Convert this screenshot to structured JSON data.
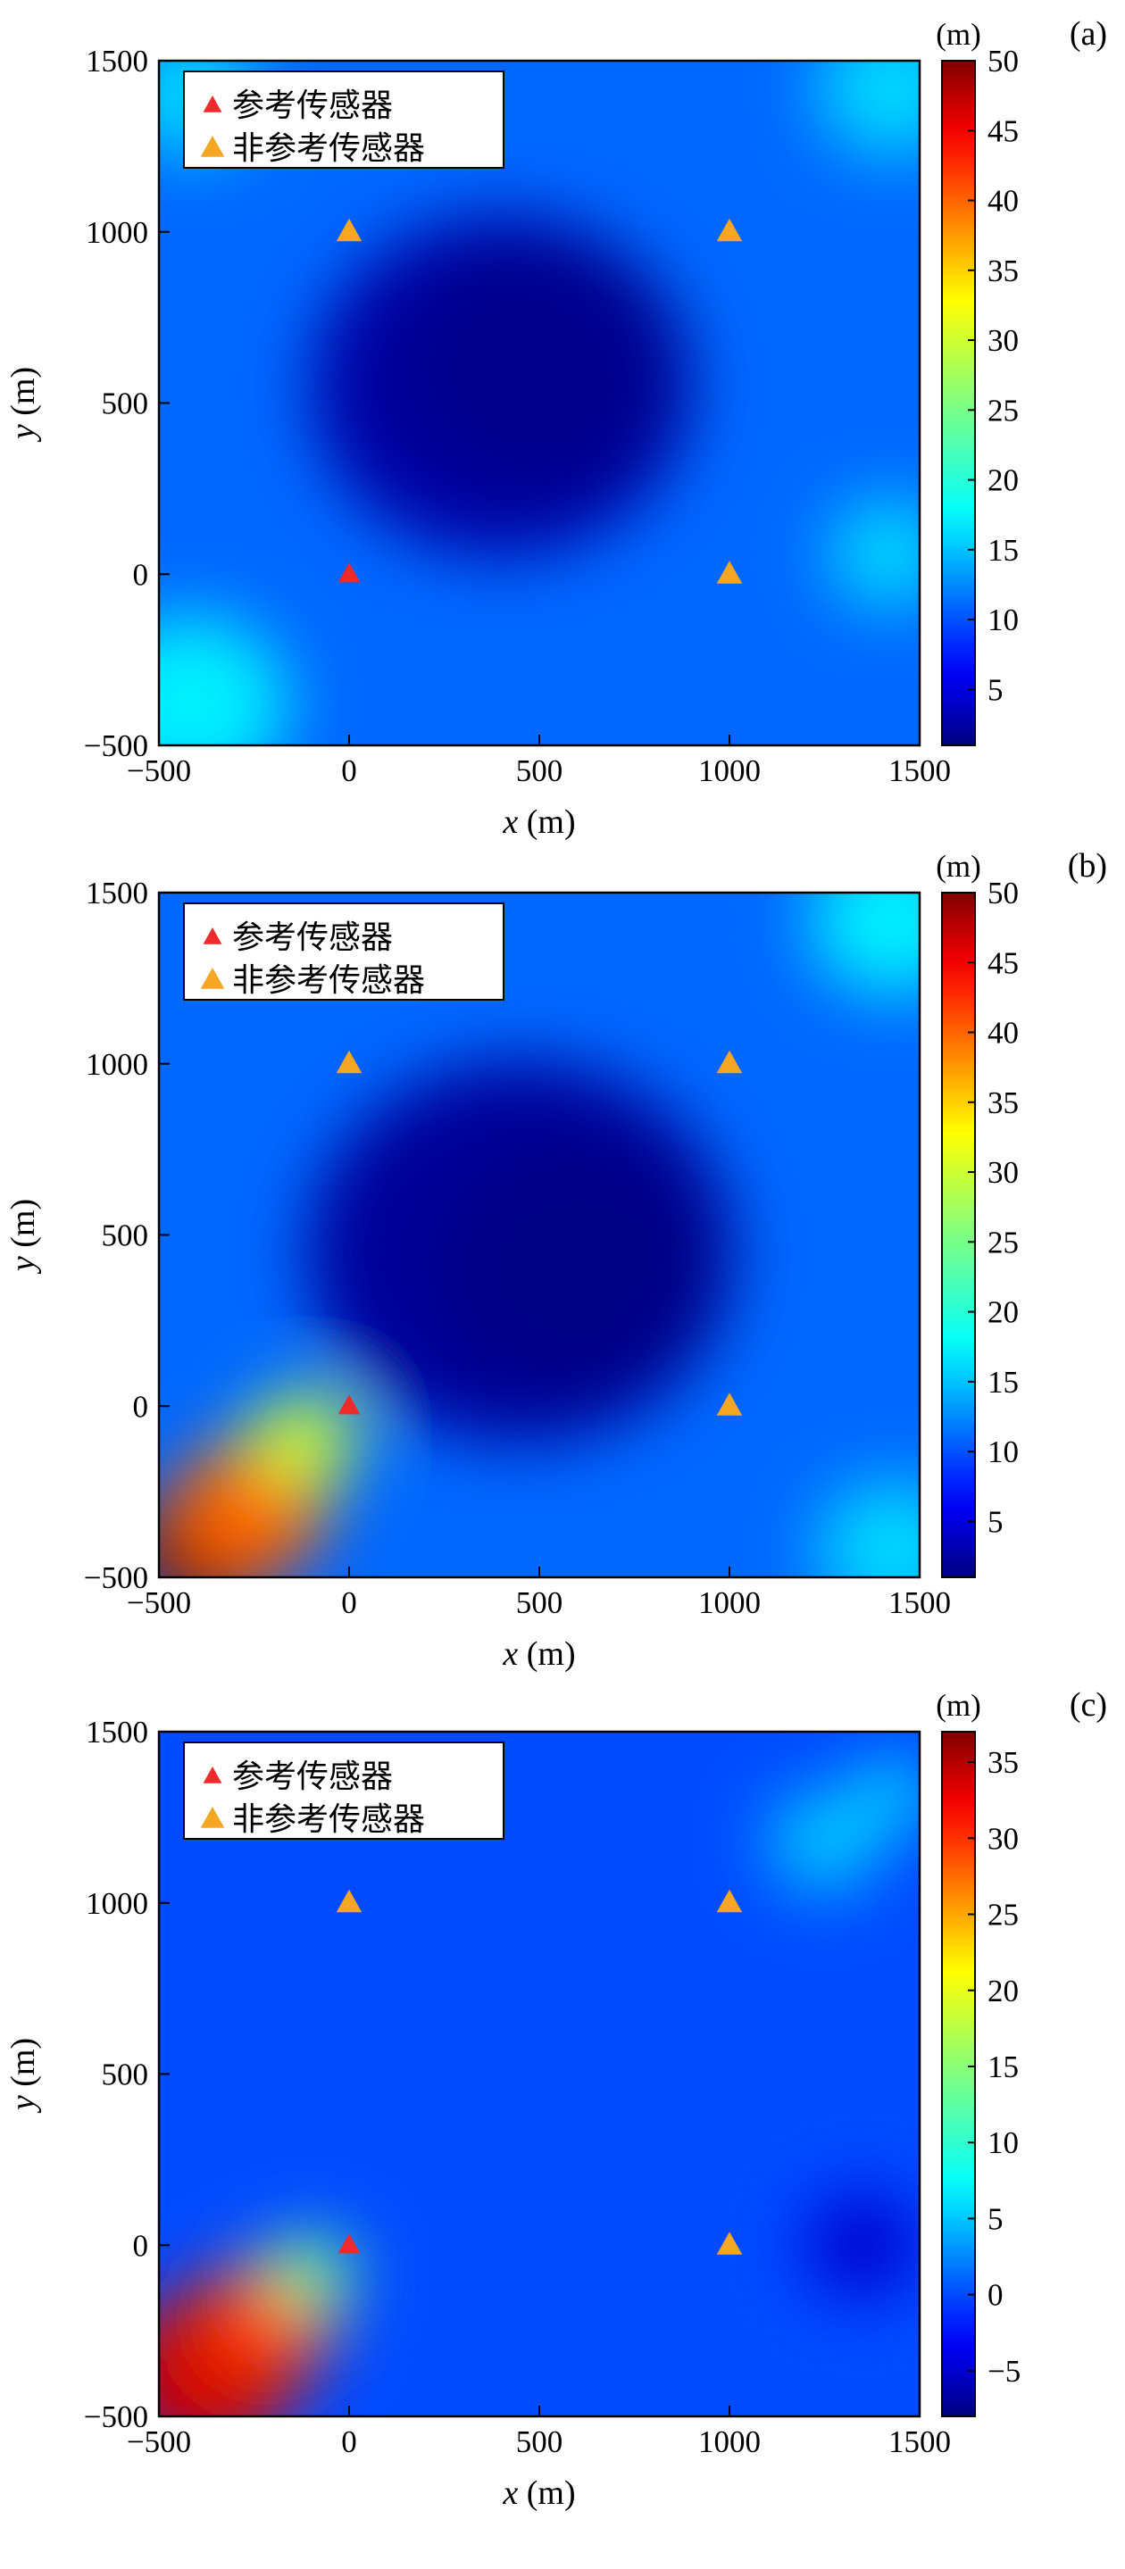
{
  "chart_data": [
    {
      "type": "heatmap",
      "panel_label": "(a)",
      "xlabel_var": "x",
      "xlabel_unit": " (m)",
      "ylabel_var": "y",
      "ylabel_unit": " (m)",
      "xlim": [
        -500,
        1500
      ],
      "ylim": [
        -500,
        1500
      ],
      "x_ticks": [
        -500,
        0,
        500,
        1000,
        1500
      ],
      "y_ticks": [
        -500,
        0,
        500,
        1000,
        1500
      ],
      "colorbar": {
        "unit": "(m)",
        "range": [
          1,
          50
        ],
        "ticks": [
          5,
          10,
          15,
          20,
          25,
          30,
          35,
          40,
          45,
          50
        ]
      },
      "legend": {
        "placement": "top-left",
        "entries": [
          {
            "label": "参考传感器",
            "color": "#ee2a2a"
          },
          {
            "label": "非参考传感器",
            "color": "#f5a623"
          }
        ]
      },
      "sensors": {
        "reference": [
          {
            "x": 0,
            "y": 0
          }
        ],
        "non_reference": [
          {
            "x": 0,
            "y": 1000
          },
          {
            "x": 1000,
            "y": 1000
          },
          {
            "x": 1000,
            "y": 0
          }
        ]
      },
      "field_sketch": {
        "background": 11,
        "blobs": [
          {
            "x": 400,
            "y": 550,
            "r": 500,
            "value": 2.5
          },
          {
            "x": 500,
            "y": 600,
            "r": 380,
            "value": 1.5
          },
          {
            "x": -420,
            "y": -380,
            "r": 260,
            "value": 17
          },
          {
            "x": 1420,
            "y": 60,
            "r": 160,
            "value": 16
          },
          {
            "x": 1430,
            "y": 1420,
            "r": 200,
            "value": 16
          },
          {
            "x": -420,
            "y": 1400,
            "r": 180,
            "value": 16
          }
        ]
      }
    },
    {
      "type": "heatmap",
      "panel_label": "(b)",
      "xlabel_var": "x",
      "xlabel_unit": " (m)",
      "ylabel_var": "y",
      "ylabel_unit": " (m)",
      "xlim": [
        -500,
        1500
      ],
      "ylim": [
        -500,
        1500
      ],
      "x_ticks": [
        -500,
        0,
        500,
        1000,
        1500
      ],
      "y_ticks": [
        -500,
        0,
        500,
        1000,
        1500
      ],
      "colorbar": {
        "unit": "(m)",
        "range": [
          1,
          50
        ],
        "ticks": [
          5,
          10,
          15,
          20,
          25,
          30,
          35,
          40,
          45,
          50
        ]
      },
      "legend": {
        "placement": "top-left",
        "entries": [
          {
            "label": "参考传感器",
            "color": "#ee2a2a"
          },
          {
            "label": "非参考传感器",
            "color": "#f5a623"
          }
        ]
      },
      "sensors": {
        "reference": [
          {
            "x": 0,
            "y": 0
          }
        ],
        "non_reference": [
          {
            "x": 0,
            "y": 1000
          },
          {
            "x": 1000,
            "y": 1000
          },
          {
            "x": 1000,
            "y": 0
          }
        ]
      },
      "field_sketch": {
        "background": 11,
        "blobs": [
          {
            "x": 450,
            "y": 450,
            "r": 560,
            "value": 2
          },
          {
            "x": 600,
            "y": 400,
            "r": 380,
            "value": 1.2
          },
          {
            "x": -380,
            "y": -420,
            "r": 200,
            "value": 50
          },
          {
            "x": -260,
            "y": -300,
            "r": 200,
            "value": 40
          },
          {
            "x": -120,
            "y": -100,
            "r": 140,
            "value": 30
          },
          {
            "x": 1430,
            "y": 1420,
            "r": 220,
            "value": 17
          },
          {
            "x": 1430,
            "y": -420,
            "r": 200,
            "value": 16
          }
        ]
      }
    },
    {
      "type": "heatmap",
      "panel_label": "(c)",
      "xlabel_var": "x",
      "xlabel_unit": " (m)",
      "ylabel_var": "y",
      "ylabel_unit": " (m)",
      "xlim": [
        -500,
        1500
      ],
      "ylim": [
        -500,
        1500
      ],
      "x_ticks": [
        -500,
        0,
        500,
        1000,
        1500
      ],
      "y_ticks": [
        -500,
        0,
        500,
        1000,
        1500
      ],
      "colorbar": {
        "unit": "(m)",
        "range": [
          -8,
          37
        ],
        "ticks": [
          -5,
          0,
          5,
          10,
          15,
          20,
          25,
          30,
          35
        ]
      },
      "legend": {
        "placement": "top-left",
        "entries": [
          {
            "label": "参考传感器",
            "color": "#ee2a2a"
          },
          {
            "label": "非参考传感器",
            "color": "#f5a623"
          }
        ]
      },
      "sensors": {
        "reference": [
          {
            "x": 0,
            "y": 0
          }
        ],
        "non_reference": [
          {
            "x": 0,
            "y": 1000
          },
          {
            "x": 1000,
            "y": 1000
          },
          {
            "x": 1000,
            "y": 0
          }
        ]
      },
      "field_sketch": {
        "background": 0,
        "blobs": [
          {
            "x": -380,
            "y": -380,
            "r": 240,
            "value": 34
          },
          {
            "x": -220,
            "y": -220,
            "r": 180,
            "value": 30
          },
          {
            "x": -100,
            "y": -80,
            "r": 110,
            "value": 14
          },
          {
            "x": 1350,
            "y": 0,
            "r": 150,
            "value": -5
          },
          {
            "x": 1250,
            "y": 1180,
            "r": 150,
            "value": 5
          },
          {
            "x": 1430,
            "y": 1320,
            "r": 100,
            "value": 6
          }
        ]
      }
    }
  ]
}
